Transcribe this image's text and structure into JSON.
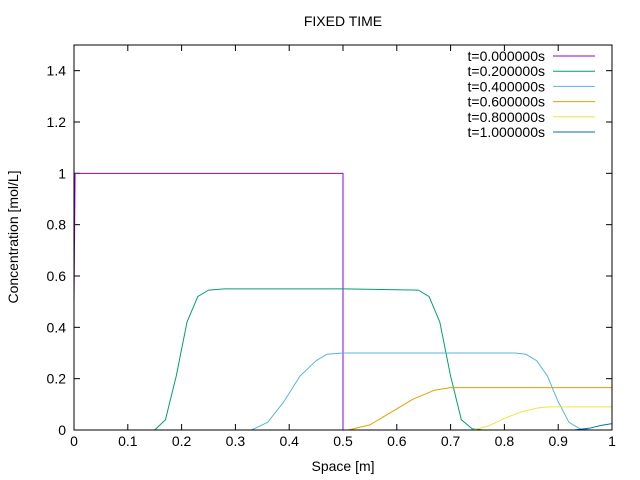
{
  "chart_data": {
    "type": "line",
    "title": "FIXED TIME",
    "xlabel": "Space [m]",
    "ylabel": "Concentration [mol/L]",
    "xlim": [
      0,
      1
    ],
    "ylim": [
      0,
      1.5
    ],
    "xticks": [
      {
        "value": 0,
        "label": "0"
      },
      {
        "value": 0.1,
        "label": "0.1"
      },
      {
        "value": 0.2,
        "label": "0.2"
      },
      {
        "value": 0.3,
        "label": "0.3"
      },
      {
        "value": 0.4,
        "label": "0.4"
      },
      {
        "value": 0.5,
        "label": "0.5"
      },
      {
        "value": 0.6,
        "label": "0.6"
      },
      {
        "value": 0.7,
        "label": "0.7"
      },
      {
        "value": 0.8,
        "label": "0.8"
      },
      {
        "value": 0.9,
        "label": "0.9"
      },
      {
        "value": 1,
        "label": "1"
      }
    ],
    "yticks": [
      {
        "value": 0,
        "label": "0"
      },
      {
        "value": 0.2,
        "label": "0.2"
      },
      {
        "value": 0.4,
        "label": "0.4"
      },
      {
        "value": 0.6,
        "label": "0.6"
      },
      {
        "value": 0.8,
        "label": "0.8"
      },
      {
        "value": 1,
        "label": "1"
      },
      {
        "value": 1.2,
        "label": "1.2"
      },
      {
        "value": 1.4,
        "label": "1.4"
      }
    ],
    "grid": false,
    "legend_position": "top-right",
    "series": [
      {
        "name": "t=0.000000s",
        "color": "#9400d3",
        "x": [
          0,
          0.002,
          0.002,
          0.5,
          0.5,
          1
        ],
        "y": [
          0.5,
          1,
          1,
          1,
          0,
          0
        ]
      },
      {
        "name": "t=0.200000s",
        "color": "#009e73",
        "x": [
          0,
          0.15,
          0.17,
          0.19,
          0.21,
          0.23,
          0.25,
          0.28,
          0.4,
          0.5,
          0.64,
          0.66,
          0.68,
          0.7,
          0.72,
          0.74,
          0.76,
          1
        ],
        "y": [
          0,
          0,
          0.04,
          0.21,
          0.42,
          0.52,
          0.545,
          0.55,
          0.55,
          0.55,
          0.545,
          0.52,
          0.42,
          0.21,
          0.04,
          0.005,
          0,
          0
        ]
      },
      {
        "name": "t=0.400000s",
        "color": "#56b4e9",
        "x": [
          0,
          0.33,
          0.36,
          0.39,
          0.42,
          0.45,
          0.47,
          0.5,
          0.7,
          0.82,
          0.84,
          0.86,
          0.88,
          0.9,
          0.92,
          0.94,
          0.96,
          1
        ],
        "y": [
          0,
          0,
          0.03,
          0.11,
          0.21,
          0.27,
          0.295,
          0.3,
          0.3,
          0.3,
          0.295,
          0.27,
          0.21,
          0.11,
          0.03,
          0.005,
          0,
          0
        ]
      },
      {
        "name": "t=0.600000s",
        "color": "#e69f00",
        "x": [
          0,
          0.51,
          0.55,
          0.59,
          0.63,
          0.67,
          0.7,
          0.75,
          0.85,
          1
        ],
        "y": [
          0,
          0,
          0.02,
          0.07,
          0.12,
          0.155,
          0.165,
          0.165,
          0.165,
          0.165
        ]
      },
      {
        "name": "t=0.800000s",
        "color": "#f0e442",
        "x": [
          0,
          0.74,
          0.77,
          0.8,
          0.83,
          0.86,
          0.88,
          0.92,
          1
        ],
        "y": [
          0,
          0,
          0.015,
          0.045,
          0.07,
          0.085,
          0.09,
          0.09,
          0.09
        ]
      },
      {
        "name": "t=1.000000s",
        "color": "#0072b2",
        "x": [
          0,
          0.93,
          0.96,
          0.98,
          1
        ],
        "y": [
          0,
          0,
          0.008,
          0.018,
          0.025
        ]
      }
    ]
  }
}
